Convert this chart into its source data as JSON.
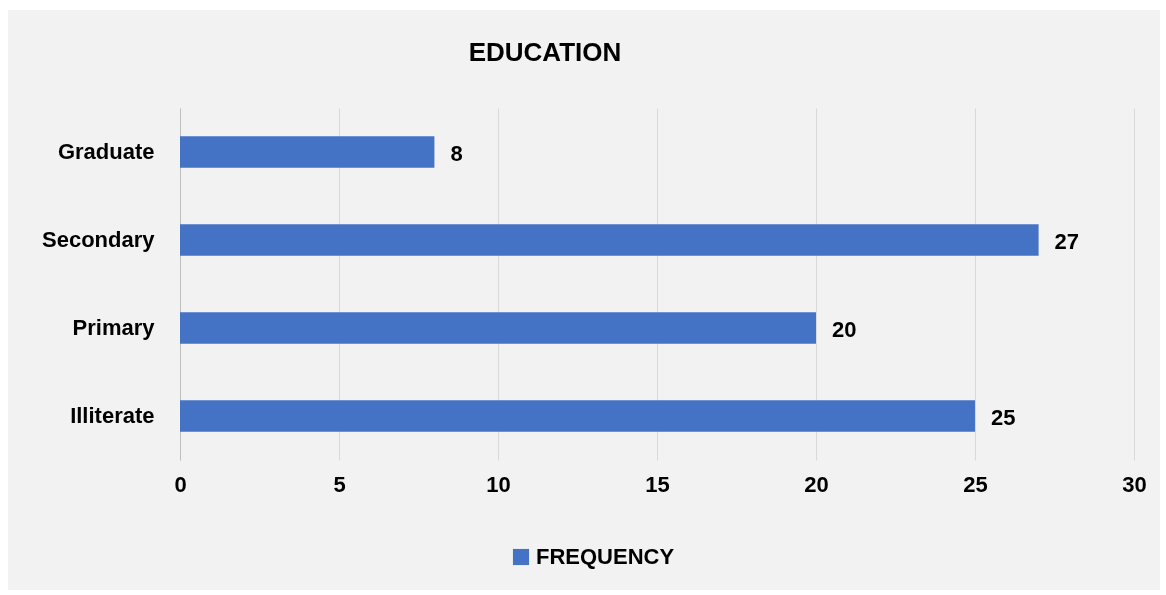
{
  "chart_data": {
    "type": "bar",
    "orientation": "horizontal",
    "title": "EDUCATION",
    "categories": [
      "Graduate",
      "Secondary",
      "Primary",
      "Illiterate"
    ],
    "series": [
      {
        "name": "FREQUENCY",
        "color": "#4472c4",
        "values": [
          8,
          27,
          20,
          25
        ]
      }
    ],
    "xlim": [
      0,
      30
    ],
    "xticks": [
      0,
      5,
      10,
      15,
      20,
      25,
      30
    ],
    "grid": "x",
    "data_labels": true,
    "legend": "bottom"
  }
}
